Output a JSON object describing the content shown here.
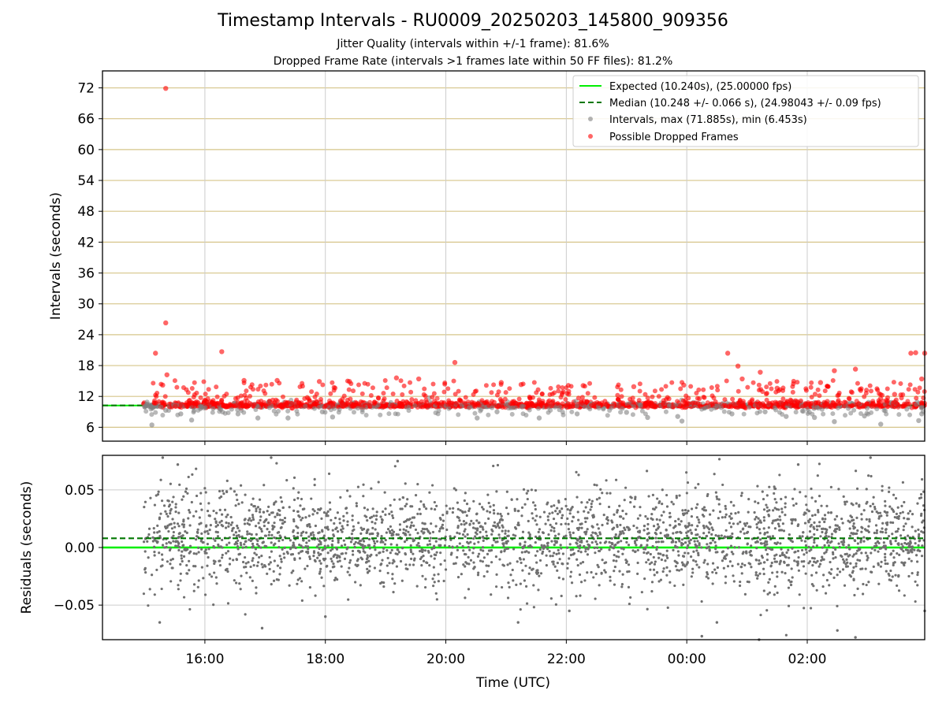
{
  "chart_data": [
    {
      "type": "scatter",
      "title": "Timestamp Intervals - RU0009_20250203_145800_909356",
      "subtitle_lines": [
        "Jitter Quality (intervals within +/-1 frame): 81.6%",
        "Dropped Frame Rate (intervals >1 frames late within 50 FF files): 81.2%"
      ],
      "ylabel": "Intervals (seconds)",
      "xlabel": "",
      "x_unit": "hours after 14:00 UTC on 2025-02-03",
      "xlim_hours": [
        0.3,
        13.95
      ],
      "ylim": [
        3.3,
        75.3
      ],
      "yticks": [
        6,
        12,
        18,
        24,
        30,
        36,
        42,
        48,
        54,
        60,
        66,
        72
      ],
      "ytick_labels": [
        "6",
        "12",
        "18",
        "24",
        "30",
        "36",
        "42",
        "48",
        "54",
        "60",
        "66",
        "72"
      ],
      "xtick_hours": [
        2,
        4,
        6,
        8,
        10,
        12
      ],
      "grid": true,
      "legend_position": "top-right",
      "legend": [
        "Expected (10.240s), (25.00000 fps)",
        "Median (10.248 +/- 0.066 s), (24.98043 +/- 0.09 fps)",
        "Intervals, max (71.885s), min (6.453s)",
        "Possible Dropped Frames"
      ],
      "expected_interval": 10.24,
      "median_interval": 10.248,
      "series": [
        {
          "name": "Intervals, max (71.885s), min (6.453s)",
          "color": "#808080",
          "notable_points": [
            [
              1.0,
              10.0
            ],
            [
              1.12,
              6.45
            ],
            [
              1.35,
              9.3
            ],
            [
              1.6,
              8.6
            ],
            [
              1.78,
              7.4
            ],
            [
              2.55,
              8.6
            ],
            [
              2.88,
              7.8
            ],
            [
              3.38,
              7.8
            ],
            [
              3.95,
              9.0
            ],
            [
              4.12,
              8.0
            ],
            [
              6.52,
              7.8
            ],
            [
              6.85,
              9.0
            ],
            [
              7.55,
              7.8
            ],
            [
              8.18,
              8.6
            ],
            [
              9.0,
              8.9
            ],
            [
              9.35,
              7.9
            ],
            [
              9.85,
              8.1
            ],
            [
              9.92,
              7.2
            ],
            [
              10.75,
              8.6
            ],
            [
              11.3,
              9.0
            ],
            [
              11.65,
              8.1
            ],
            [
              12.12,
              7.9
            ],
            [
              12.45,
              7.1
            ],
            [
              12.95,
              8.2
            ],
            [
              13.22,
              6.6
            ],
            [
              13.85,
              7.3
            ],
            [
              13.9,
              8.6
            ]
          ]
        },
        {
          "name": "Possible Dropped Frames",
          "color": "#ff0000",
          "notable_points": [
            [
              1.35,
              71.9
            ],
            [
              1.35,
              26.3
            ],
            [
              1.18,
              20.4
            ],
            [
              1.37,
              16.2
            ],
            [
              1.3,
              14.2
            ],
            [
              2.28,
              20.7
            ],
            [
              2.65,
              15.1
            ],
            [
              3.2,
              15.1
            ],
            [
              3.9,
              14.9
            ],
            [
              4.4,
              14.9
            ],
            [
              5.18,
              15.6
            ],
            [
              5.55,
              15.4
            ],
            [
              6.15,
              18.6
            ],
            [
              6.92,
              14.7
            ],
            [
              7.25,
              14.3
            ],
            [
              8.28,
              14.1
            ],
            [
              9.12,
              13.9
            ],
            [
              9.95,
              14.2
            ],
            [
              10.68,
              20.4
            ],
            [
              10.92,
              15.4
            ],
            [
              10.85,
              17.9
            ],
            [
              11.22,
              16.7
            ],
            [
              11.5,
              13.6
            ],
            [
              12.22,
              14.7
            ],
            [
              12.45,
              17.0
            ],
            [
              12.8,
              17.3
            ],
            [
              13.45,
              12.4
            ],
            [
              13.72,
              20.4
            ],
            [
              13.8,
              20.5
            ],
            [
              13.95,
              20.4
            ],
            [
              13.9,
              15.4
            ]
          ]
        }
      ]
    },
    {
      "type": "scatter",
      "title": "",
      "xlabel": "Time (UTC)",
      "ylabel": "Residuals (seconds)",
      "x_unit": "hours after 14:00 UTC on 2025-02-03",
      "xlim_hours": [
        0.3,
        13.95
      ],
      "ylim": [
        -0.08,
        0.08
      ],
      "yticks": [
        -0.05,
        0.0,
        0.05
      ],
      "ytick_labels": [
        "−0.05",
        "0.00",
        "0.05"
      ],
      "xtick_hours": [
        2,
        4,
        6,
        8,
        10,
        12
      ],
      "xtick_labels": [
        "16:00",
        "18:00",
        "20:00",
        "22:00",
        "00:00",
        "02:00"
      ],
      "grid": true,
      "expected_residual": 0.0,
      "median_residual": 0.008,
      "residual_spread_sd": 0.022,
      "series": [
        {
          "name": "",
          "color": "#808080",
          "notable_points": [
            [
              1.25,
              -0.065
            ],
            [
              1.3,
              0.078
            ],
            [
              1.55,
              0.072
            ],
            [
              2.95,
              -0.07
            ],
            [
              3.1,
              0.078
            ],
            [
              4.0,
              -0.06
            ],
            [
              5.2,
              0.075
            ],
            [
              7.2,
              -0.065
            ],
            [
              8.05,
              -0.055
            ],
            [
              10.25,
              -0.077
            ],
            [
              10.5,
              -0.065
            ],
            [
              11.2,
              -0.08
            ],
            [
              11.85,
              0.072
            ],
            [
              12.5,
              -0.072
            ],
            [
              12.8,
              -0.078
            ],
            [
              13.05,
              0.078
            ],
            [
              13.95,
              -0.055
            ]
          ]
        }
      ]
    }
  ]
}
